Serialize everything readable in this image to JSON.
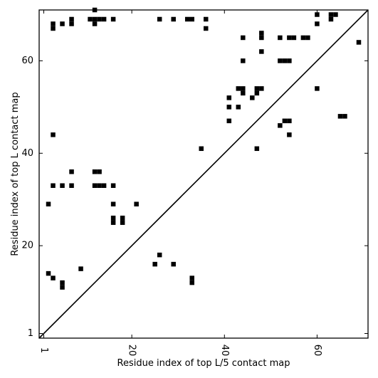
{
  "chart_data": {
    "type": "scatter",
    "xlabel": "Residue index of top L/5 contact map",
    "ylabel": "Residue index of top L contact map",
    "xlim": [
      0,
      71
    ],
    "ylim": [
      0,
      71
    ],
    "xticks": [
      1,
      20,
      40,
      60
    ],
    "yticks": [
      1,
      20,
      40,
      60
    ],
    "diagonal": true,
    "grid": false,
    "marker": "square",
    "marker_color": "#000000",
    "upper_points": [
      [
        3,
        67
      ],
      [
        3,
        68
      ],
      [
        5,
        68
      ],
      [
        7,
        68
      ],
      [
        7,
        69
      ],
      [
        12,
        71
      ],
      [
        12,
        68
      ],
      [
        11,
        69
      ],
      [
        12,
        69
      ],
      [
        13,
        69
      ],
      [
        14,
        69
      ],
      [
        16,
        69
      ],
      [
        26,
        69
      ],
      [
        29,
        69
      ],
      [
        32,
        69
      ],
      [
        33,
        69
      ],
      [
        36,
        69
      ],
      [
        36,
        67
      ],
      [
        44,
        65
      ],
      [
        44,
        60
      ],
      [
        48,
        66
      ],
      [
        48,
        65
      ],
      [
        48,
        62
      ],
      [
        52,
        65
      ],
      [
        54,
        65
      ],
      [
        55,
        65
      ],
      [
        57,
        65
      ],
      [
        58,
        65
      ],
      [
        60,
        70
      ],
      [
        60,
        68
      ],
      [
        63,
        70
      ],
      [
        64,
        70
      ],
      [
        63,
        69
      ],
      [
        69,
        64
      ],
      [
        52,
        60
      ],
      [
        53,
        60
      ],
      [
        54,
        60
      ],
      [
        41,
        52
      ],
      [
        41,
        50
      ],
      [
        43,
        54
      ],
      [
        44,
        54
      ],
      [
        44,
        53
      ],
      [
        43,
        50
      ],
      [
        46,
        52
      ],
      [
        47,
        54
      ],
      [
        48,
        54
      ],
      [
        47,
        53
      ],
      [
        41,
        47
      ],
      [
        52,
        46
      ],
      [
        53,
        47
      ],
      [
        54,
        47
      ],
      [
        54,
        44
      ],
      [
        60,
        54
      ],
      [
        65,
        48
      ],
      [
        66,
        48
      ],
      [
        47,
        41
      ],
      [
        35,
        41
      ]
    ],
    "lower_points": [
      [
        3,
        44
      ],
      [
        3,
        33
      ],
      [
        5,
        33
      ],
      [
        7,
        33
      ],
      [
        7,
        36
      ],
      [
        2,
        29
      ],
      [
        12,
        36
      ],
      [
        13,
        36
      ],
      [
        12,
        33
      ],
      [
        13,
        33
      ],
      [
        14,
        33
      ],
      [
        16,
        33
      ],
      [
        16,
        29
      ],
      [
        21,
        29
      ],
      [
        16,
        26
      ],
      [
        16,
        25
      ],
      [
        18,
        26
      ],
      [
        18,
        25
      ],
      [
        2,
        14
      ],
      [
        3,
        13
      ],
      [
        5,
        12
      ],
      [
        5,
        11
      ],
      [
        9,
        15
      ],
      [
        25,
        16
      ],
      [
        26,
        18
      ],
      [
        29,
        16
      ],
      [
        33,
        13
      ],
      [
        33,
        12
      ]
    ]
  }
}
